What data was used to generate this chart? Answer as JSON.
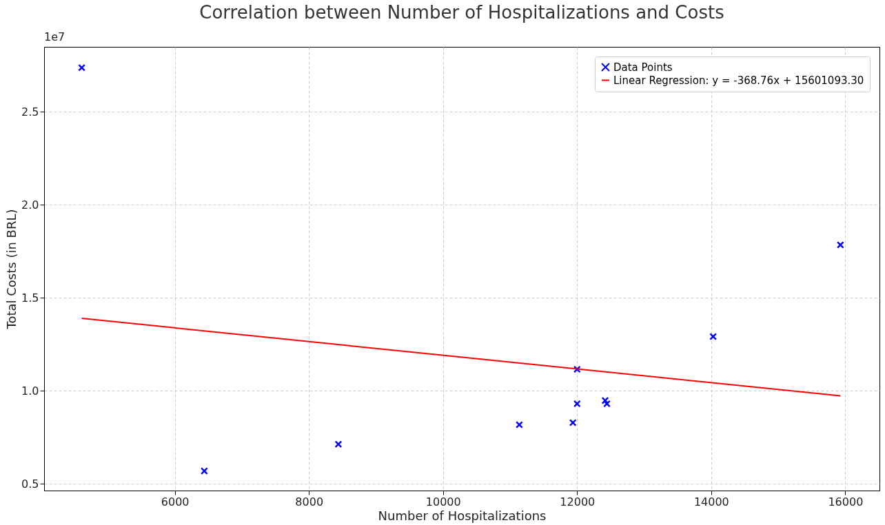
{
  "chart_data": {
    "type": "scatter",
    "title": "Correlation between Number of Hospitalizations and Costs",
    "xlabel": "Number of Hospitalizations",
    "ylabel": "Total Costs (in BRL)",
    "annotations": [
      "1e7"
    ],
    "xlim": [
      4050,
      16510
    ],
    "ylim": [
      0.464,
      2.85
    ],
    "xticks": [
      6000,
      8000,
      10000,
      12000,
      14000,
      16000
    ],
    "yticks": [
      {
        "value": 0.5,
        "label": "0.5"
      },
      {
        "value": 1,
        "label": "1.0"
      },
      {
        "value": 1.5,
        "label": "1.5"
      },
      {
        "value": 2,
        "label": "2.0"
      },
      {
        "value": 2.5,
        "label": "2.5"
      }
    ],
    "grid": true,
    "legend": "top right",
    "series": [
      {
        "name": "Data Points",
        "marker": "cross",
        "color": "#0000ff",
        "x": [
          4611,
          6439,
          8439,
          11138,
          11937,
          12000,
          12000,
          12418,
          12444,
          14029,
          15927
        ],
        "values": [
          2.738,
          0.569,
          0.713,
          0.818,
          0.829,
          1.116,
          0.931,
          0.948,
          0.931,
          1.292,
          1.785
        ]
      },
      {
        "name": "Linear Regression: y = -368.76x + 15601093.30",
        "type": "line",
        "color": "#ff0000",
        "line_style": "solid",
        "x": [
          4611,
          15927
        ],
        "values": [
          1.39,
          0.973
        ]
      }
    ]
  }
}
